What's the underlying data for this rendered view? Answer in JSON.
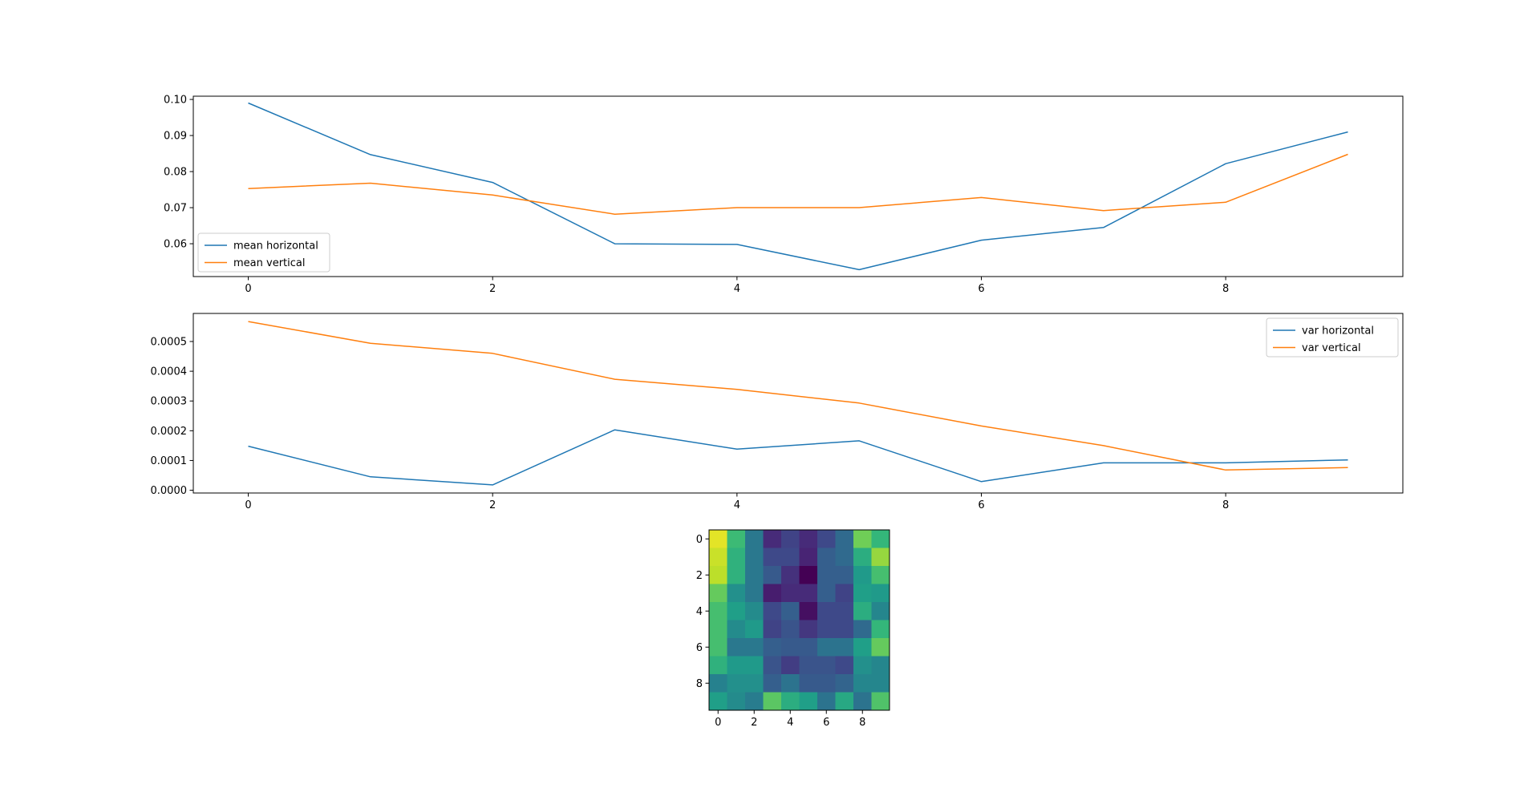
{
  "chart_data": [
    {
      "type": "line",
      "x": [
        0,
        1,
        2,
        3,
        4,
        5,
        6,
        7,
        8,
        9
      ],
      "series": [
        {
          "name": "mean horizontal",
          "color": "#1f77b4",
          "values": [
            0.099,
            0.0847,
            0.077,
            0.06,
            0.0598,
            0.0528,
            0.061,
            0.0645,
            0.0822,
            0.091
          ]
        },
        {
          "name": "mean vertical",
          "color": "#ff7f0e",
          "values": [
            0.0753,
            0.0768,
            0.0735,
            0.0682,
            0.07,
            0.07,
            0.0728,
            0.0692,
            0.0715,
            0.0848
          ]
        }
      ],
      "xlim": [
        -0.45,
        9.45
      ],
      "ylim": [
        0.0509,
        0.1009
      ],
      "xticks": [
        "0",
        "2",
        "4",
        "6",
        "8"
      ],
      "yticks": [
        "0.06",
        "0.07",
        "0.08",
        "0.09",
        "0.10"
      ],
      "legend": "lower-left",
      "grid": false
    },
    {
      "type": "line",
      "x": [
        0,
        1,
        2,
        3,
        4,
        5,
        6,
        7,
        8,
        9
      ],
      "series": [
        {
          "name": "var horizontal",
          "color": "#1f77b4",
          "values": [
            0.000148,
            4.5e-05,
            1.8e-05,
            0.000203,
            0.000138,
            0.000166,
            2.9e-05,
            9.2e-05,
            9.2e-05,
            0.000102
          ]
        },
        {
          "name": "var vertical",
          "color": "#ff7f0e",
          "values": [
            0.000567,
            0.000494,
            0.00046,
            0.000373,
            0.000339,
            0.000293,
            0.000216,
            0.00015,
            6.8e-05,
            7.6e-05
          ]
        }
      ],
      "xlim": [
        -0.45,
        9.45
      ],
      "ylim": [
        -9.3e-06,
        0.0005943
      ],
      "xticks": [
        "0",
        "2",
        "4",
        "6",
        "8"
      ],
      "yticks": [
        "0.0000",
        "0.0001",
        "0.0002",
        "0.0003",
        "0.0004",
        "0.0005"
      ],
      "legend": "top-right",
      "grid": false
    },
    {
      "type": "heatmap",
      "colormap": "viridis",
      "xticks": [
        "0",
        "2",
        "4",
        "6",
        "8"
      ],
      "yticks": [
        "0",
        "2",
        "4",
        "6",
        "8"
      ],
      "matrix": [
        [
          0.96,
          0.68,
          0.4,
          0.12,
          0.2,
          0.12,
          0.22,
          0.34,
          0.78,
          0.66
        ],
        [
          0.92,
          0.64,
          0.4,
          0.22,
          0.22,
          0.1,
          0.3,
          0.34,
          0.62,
          0.84
        ],
        [
          0.9,
          0.64,
          0.4,
          0.28,
          0.14,
          0.0,
          0.3,
          0.3,
          0.54,
          0.7
        ],
        [
          0.76,
          0.5,
          0.4,
          0.08,
          0.12,
          0.12,
          0.3,
          0.2,
          0.56,
          0.54
        ],
        [
          0.7,
          0.56,
          0.48,
          0.22,
          0.3,
          0.04,
          0.22,
          0.22,
          0.62,
          0.46
        ],
        [
          0.7,
          0.48,
          0.54,
          0.2,
          0.26,
          0.16,
          0.22,
          0.22,
          0.34,
          0.66
        ],
        [
          0.7,
          0.4,
          0.4,
          0.3,
          0.28,
          0.28,
          0.38,
          0.38,
          0.56,
          0.76
        ],
        [
          0.64,
          0.54,
          0.54,
          0.26,
          0.18,
          0.26,
          0.26,
          0.22,
          0.5,
          0.46
        ],
        [
          0.44,
          0.5,
          0.5,
          0.3,
          0.38,
          0.28,
          0.28,
          0.32,
          0.46,
          0.46
        ],
        [
          0.56,
          0.48,
          0.42,
          0.74,
          0.62,
          0.56,
          0.38,
          0.6,
          0.38,
          0.72
        ]
      ]
    }
  ]
}
